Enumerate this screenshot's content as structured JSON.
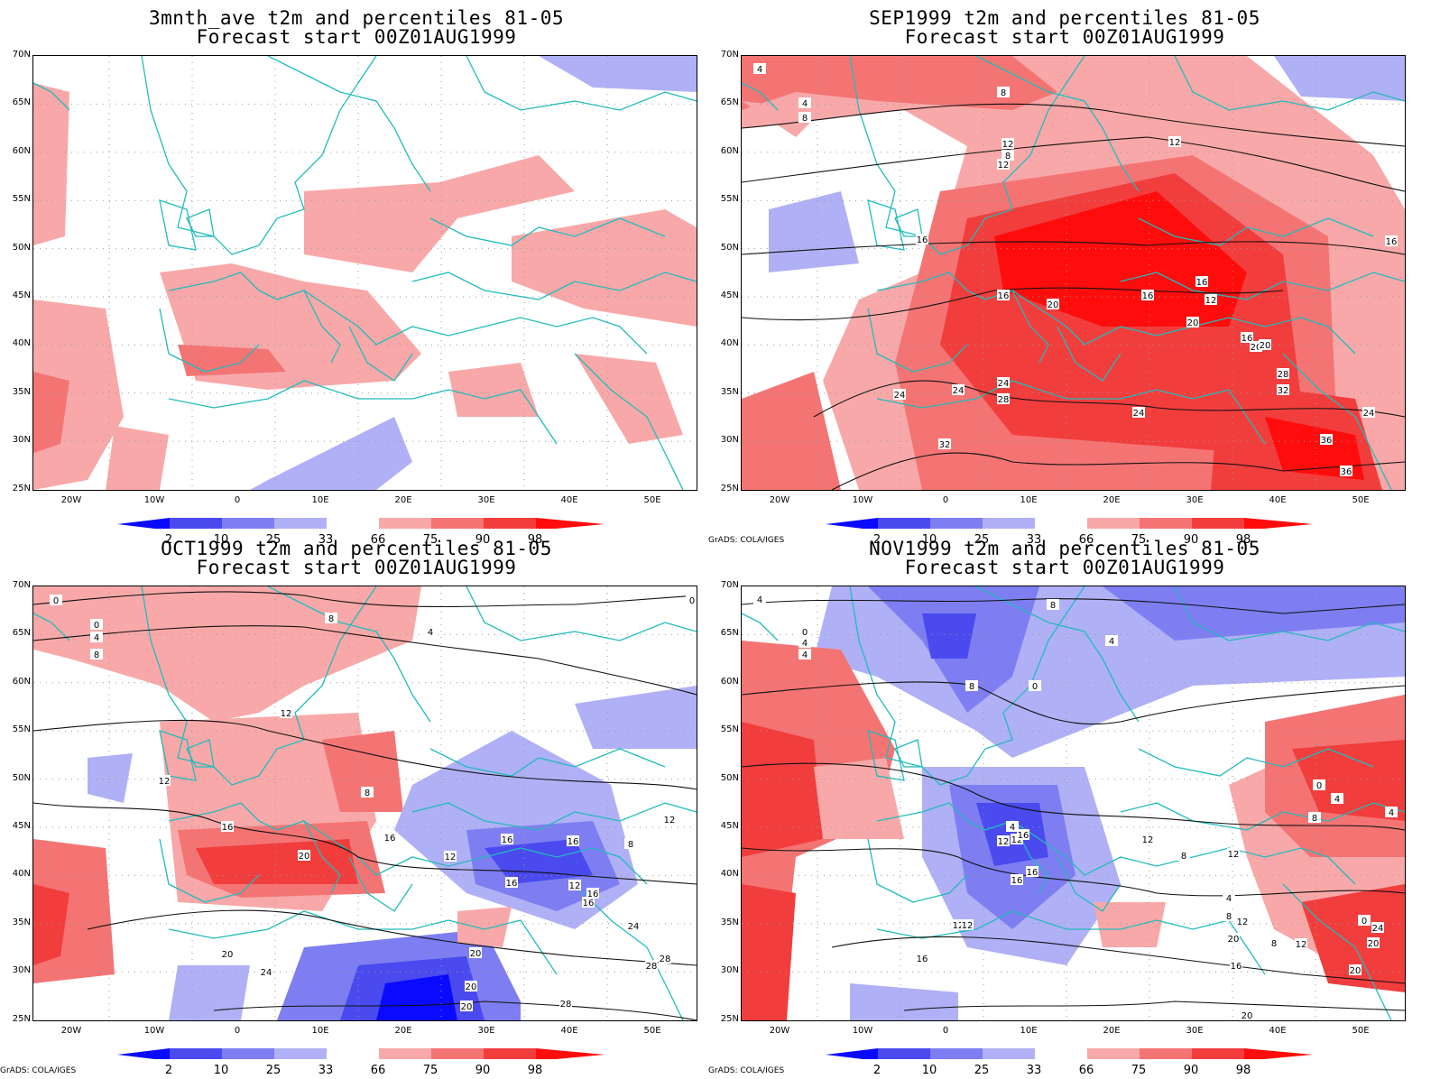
{
  "colors": {
    "coast": "#22bbbb",
    "b2": "#0a0aff",
    "b10": "#4a4aef",
    "b25": "#7e7ef2",
    "b33": "#b0b0f6",
    "r66": "#f8a8a8",
    "r75": "#f47474",
    "r90": "#f23d3d",
    "r98": "#ff0c0c"
  },
  "lat_labels": [
    "70N",
    "65N",
    "60N",
    "55N",
    "50N",
    "45N",
    "40N",
    "35N",
    "30N",
    "25N"
  ],
  "lon_labels": [
    "20W",
    "10W",
    "0",
    "10E",
    "20E",
    "30E",
    "40E",
    "50E"
  ],
  "colorbar_labels": [
    "2",
    "10",
    "25",
    "33",
    "66",
    "75",
    "90",
    "98"
  ],
  "credit": "GrADS: COLA/IGES",
  "panels": [
    {
      "title": "3mnth_ave t2m and percentiles 81-05",
      "subtitle": "Forecast start 00Z01AUG1999"
    },
    {
      "title": "SEP1999 t2m and percentiles 81-05",
      "subtitle": "Forecast start 00Z01AUG1999"
    },
    {
      "title": "OCT1999 t2m and percentiles 81-05",
      "subtitle": "Forecast start 00Z01AUG1999"
    },
    {
      "title": "NOV1999 t2m and percentiles 81-05",
      "subtitle": "Forecast start 00Z01AUG1999"
    }
  ],
  "contour_labels": {
    "sep": [
      "4",
      "4",
      "8",
      "8",
      "8",
      "12",
      "12",
      "12",
      "16",
      "16",
      "16",
      "12",
      "16",
      "20",
      "16",
      "20",
      "16",
      "20",
      "20",
      "24",
      "24",
      "24",
      "24",
      "28",
      "28",
      "32",
      "32",
      "36",
      "36",
      "24"
    ],
    "oct": [
      "0",
      "0",
      "4",
      "8",
      "8",
      "4",
      "12",
      "12",
      "16",
      "16",
      "8",
      "16",
      "16",
      "16",
      "20",
      "12",
      "16",
      "12",
      "16",
      "8",
      "12",
      "20",
      "24",
      "28",
      "28",
      "20",
      "20",
      "20",
      "24",
      "28",
      "0"
    ],
    "nov": [
      "4",
      "0",
      "4",
      "4",
      "8",
      "8",
      "4",
      "0",
      "12",
      "4",
      "12",
      "16",
      "16",
      "12",
      "16",
      "16",
      "12",
      "20",
      "20",
      "20",
      "24",
      "0",
      "4",
      "8",
      "4",
      "12",
      "8",
      "12",
      "8",
      "0",
      "8",
      "12",
      "16",
      "20",
      "12",
      "4"
    ]
  }
}
